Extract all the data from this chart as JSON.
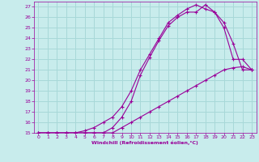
{
  "xlabel": "Windchill (Refroidissement éolien,°C)",
  "bg_color": "#c8ecec",
  "grid_color": "#a8d8d8",
  "line_color": "#990099",
  "xlim": [
    -0.5,
    23.5
  ],
  "ylim": [
    15,
    27.5
  ],
  "xticks": [
    0,
    1,
    2,
    3,
    4,
    5,
    6,
    7,
    8,
    9,
    10,
    11,
    12,
    13,
    14,
    15,
    16,
    17,
    18,
    19,
    20,
    21,
    22,
    23
  ],
  "yticks": [
    15,
    16,
    17,
    18,
    19,
    20,
    21,
    22,
    23,
    24,
    25,
    26,
    27
  ],
  "line1_x": [
    0,
    1,
    2,
    3,
    4,
    5,
    6,
    7,
    8,
    9,
    10,
    11,
    12,
    13,
    14,
    15,
    16,
    17,
    18,
    19,
    20,
    21,
    22,
    23
  ],
  "line1_y": [
    15,
    15,
    15,
    15,
    15,
    15,
    15,
    15,
    15.5,
    16.5,
    18.0,
    20.5,
    22.2,
    23.8,
    25.2,
    26.0,
    26.5,
    26.5,
    27.2,
    26.5,
    25.5,
    23.5,
    21.0,
    21.0
  ],
  "line2_x": [
    0,
    1,
    2,
    3,
    4,
    5,
    6,
    7,
    8,
    9,
    10,
    11,
    12,
    13,
    14,
    15,
    16,
    17,
    18,
    19,
    20,
    21,
    22,
    23
  ],
  "line2_y": [
    15,
    15,
    15,
    15,
    15,
    15.2,
    15.5,
    16.0,
    16.5,
    17.5,
    19.0,
    21.0,
    22.5,
    24.0,
    25.5,
    26.2,
    26.8,
    27.2,
    26.8,
    26.5,
    25.0,
    22.0,
    22.0,
    21.0
  ],
  "line3_x": [
    0,
    1,
    2,
    3,
    4,
    5,
    6,
    7,
    8,
    9,
    10,
    11,
    12,
    13,
    14,
    15,
    16,
    17,
    18,
    19,
    20,
    21,
    22,
    23
  ],
  "line3_y": [
    15,
    15,
    15,
    15,
    15,
    15,
    15,
    15,
    15,
    15.5,
    16.0,
    16.5,
    17.0,
    17.5,
    18.0,
    18.5,
    19.0,
    19.5,
    20.0,
    20.5,
    21.0,
    21.2,
    21.3,
    21.0
  ]
}
